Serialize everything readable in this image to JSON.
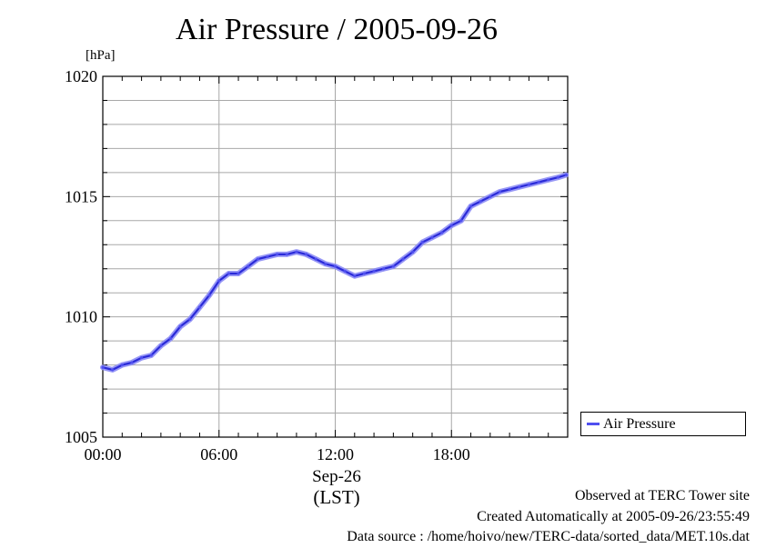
{
  "chart_data": {
    "type": "line",
    "title": "Air Pressure / 2005-09-26",
    "ylabel": "[hPa]",
    "xlabel_date": "Sep-26",
    "xlabel_zone": "(LST)",
    "ylim": [
      1005,
      1020
    ],
    "xlim": [
      "00:00",
      "24:00"
    ],
    "yticks": [
      1005,
      1010,
      1015,
      1020
    ],
    "yminor_step": 1,
    "xticks": [
      "00:00",
      "06:00",
      "12:00",
      "18:00"
    ],
    "grid": true,
    "legend": "right",
    "series": [
      {
        "name": "Air Pressure",
        "color": "#4f4ff0",
        "x": [
          "00:00",
          "00:30",
          "01:00",
          "01:30",
          "02:00",
          "02:30",
          "03:00",
          "03:30",
          "04:00",
          "04:30",
          "05:00",
          "05:30",
          "06:00",
          "06:30",
          "07:00",
          "07:30",
          "08:00",
          "08:30",
          "09:00",
          "09:30",
          "10:00",
          "10:30",
          "11:00",
          "11:30",
          "12:00",
          "12:30",
          "13:00",
          "13:30",
          "14:00",
          "14:30",
          "15:00",
          "15:30",
          "16:00",
          "16:30",
          "17:00",
          "17:30",
          "18:00",
          "18:30",
          "19:00",
          "19:30",
          "20:00",
          "20:30",
          "21:00",
          "21:30",
          "22:00",
          "22:30",
          "23:00",
          "23:30",
          "23:55"
        ],
        "values": [
          1007.9,
          1007.8,
          1008.0,
          1008.1,
          1008.3,
          1008.4,
          1008.8,
          1009.1,
          1009.6,
          1009.9,
          1010.4,
          1010.9,
          1011.5,
          1011.8,
          1011.8,
          1012.1,
          1012.4,
          1012.5,
          1012.6,
          1012.6,
          1012.7,
          1012.6,
          1012.4,
          1012.2,
          1012.1,
          1011.9,
          1011.7,
          1011.8,
          1011.9,
          1012.0,
          1012.1,
          1012.4,
          1012.7,
          1013.1,
          1013.3,
          1013.5,
          1013.8,
          1014.0,
          1014.6,
          1014.8,
          1015.0,
          1015.2,
          1015.3,
          1015.4,
          1015.5,
          1015.6,
          1015.7,
          1015.8,
          1015.9
        ]
      }
    ]
  },
  "footer": {
    "line1": "Observed at TERC Tower site",
    "line2": "Created Automatically at 2005-09-26/23:55:49",
    "line3": "Data source : /home/hoivo/new/TERC-data/sorted_data/MET.10s.dat"
  }
}
